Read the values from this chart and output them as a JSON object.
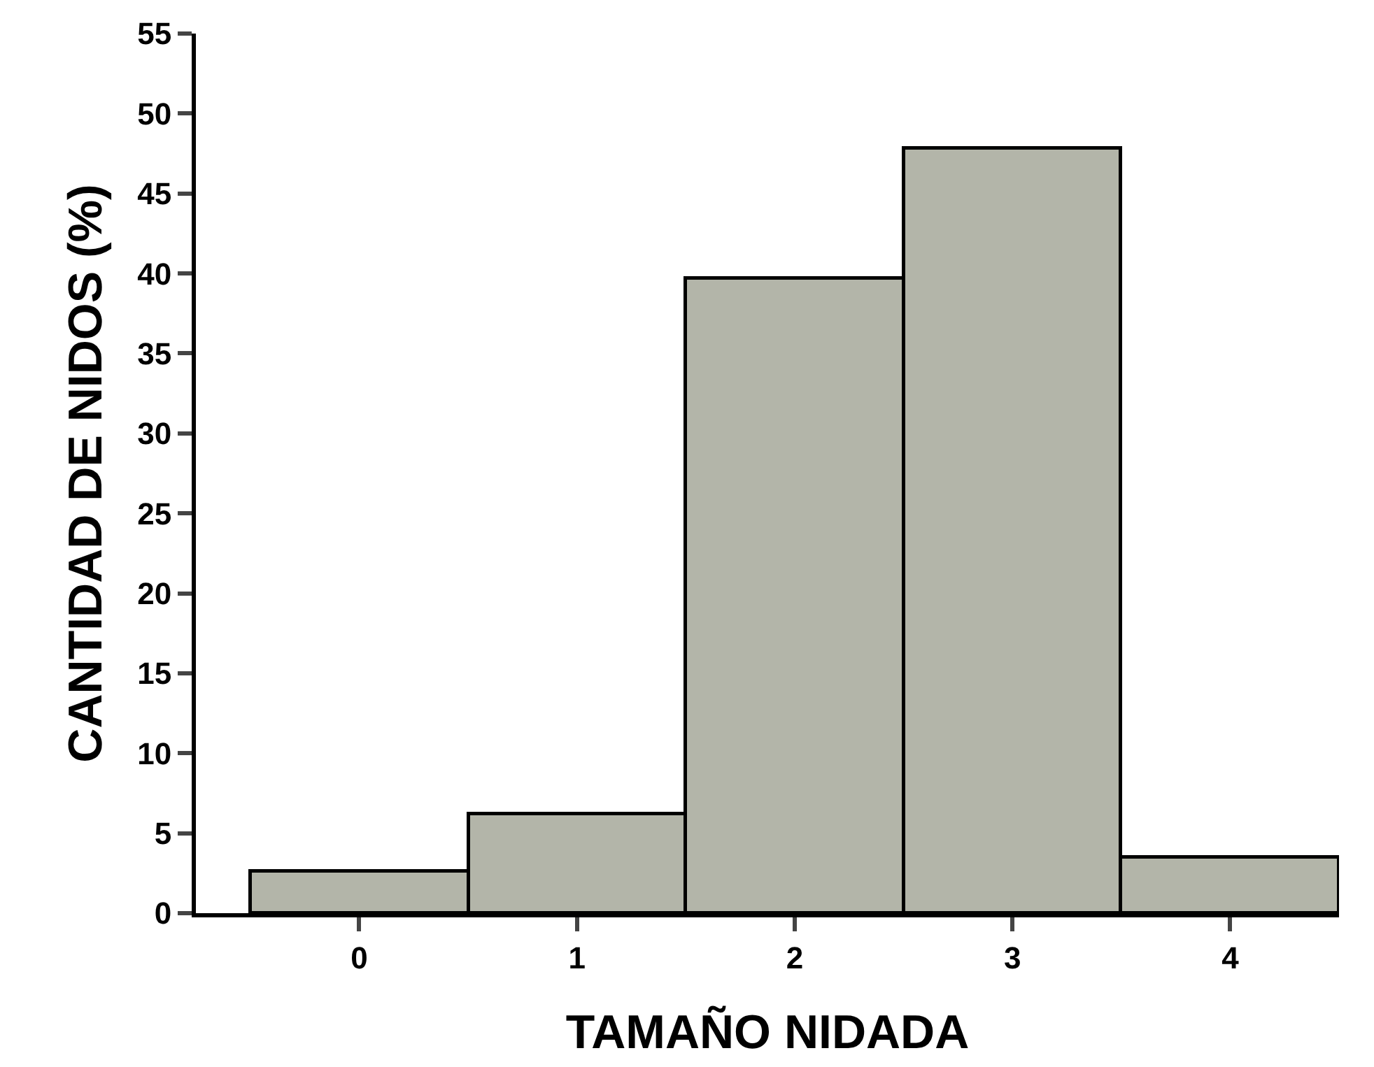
{
  "chart_data": {
    "type": "bar",
    "xlabel": "TAMAÑO NIDADA",
    "ylabel": "CANTIDAD DE NIDOS (%)",
    "categories": [
      "0",
      "1",
      "2",
      "3",
      "4"
    ],
    "values": [
      2.6,
      6.2,
      39.7,
      47.8,
      3.5
    ],
    "color": "#b3b5a9",
    "ylim": [
      0,
      55
    ],
    "yticks": [
      0,
      5,
      10,
      15,
      20,
      25,
      30,
      35,
      40,
      45,
      50,
      55
    ]
  }
}
